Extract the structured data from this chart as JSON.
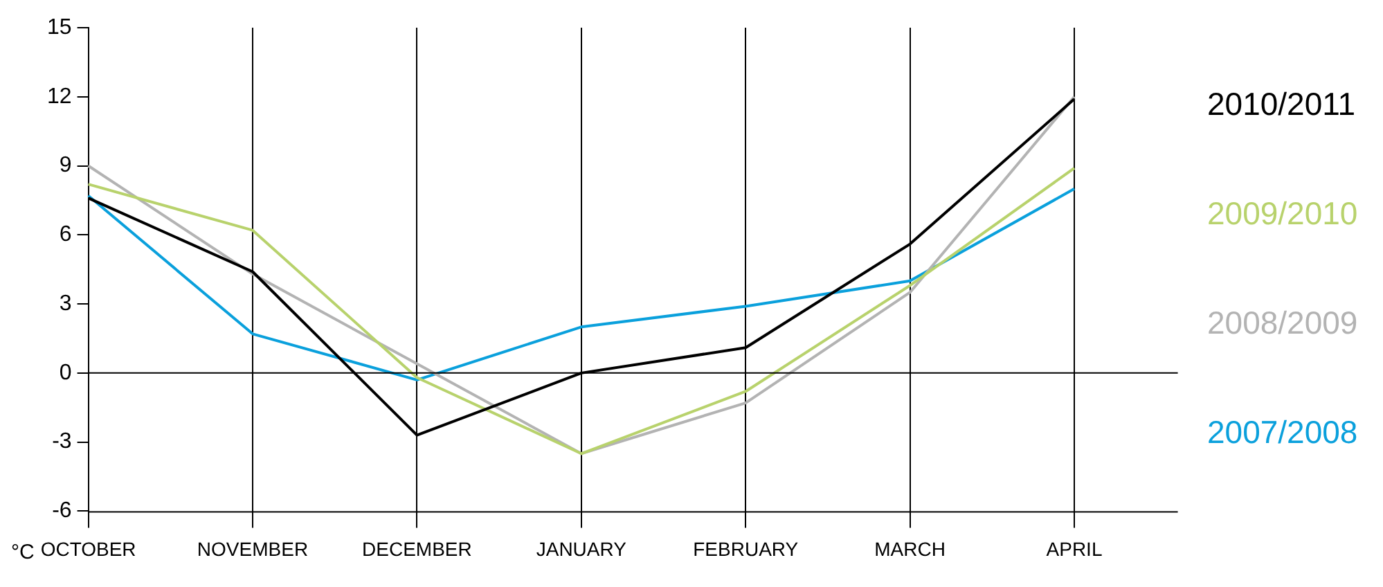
{
  "chart_data": {
    "type": "line",
    "ylabel": "°C",
    "categories": [
      "OCTOBER",
      "NOVEMBER",
      "DECEMBER",
      "JANUARY",
      "FEBRUARY",
      "MARCH",
      "APRIL"
    ],
    "ylim": [
      -6,
      15
    ],
    "yticks": [
      -6,
      -3,
      0,
      3,
      6,
      9,
      12,
      15
    ],
    "grid": "x",
    "legend": "right",
    "marker": "none",
    "line_style": "solid",
    "ref_lines": [
      {
        "axis": "y",
        "value": 0,
        "color": "#000000"
      }
    ],
    "series": [
      {
        "name": "2010/2011",
        "color": "#000000",
        "values": [
          7.6,
          4.4,
          -2.7,
          0,
          1.1,
          5.6,
          11.9
        ]
      },
      {
        "name": "2009/2010",
        "color": "#b8d26c",
        "values": [
          8.2,
          6.2,
          -0.2,
          -3.5,
          -0.8,
          3.8,
          8.9
        ]
      },
      {
        "name": "2008/2009",
        "color": "#b3b3b3",
        "values": [
          9.0,
          4.3,
          0.4,
          -3.5,
          -1.3,
          3.5,
          12.0
        ]
      },
      {
        "name": "2007/2008",
        "color": "#0aa0dc",
        "values": [
          7.7,
          1.7,
          -0.3,
          2.0,
          2.9,
          4.0,
          8.0
        ]
      }
    ]
  }
}
